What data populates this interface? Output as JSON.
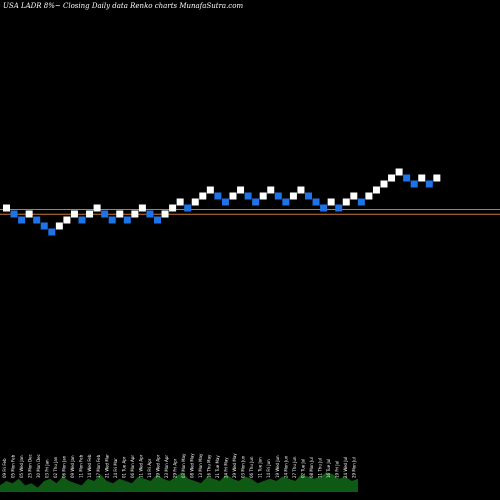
{
  "title": "USA LADR 8%~  Closing Daily data  Renko  charts MunafaSutra.com",
  "chart_data": {
    "type": "renko",
    "background": "#000000",
    "colors": {
      "up_brick": "#ffffff",
      "down_brick": "#1e73e8",
      "reference_line": "#c8783c",
      "volume": "#0e5a14"
    },
    "bricks": [
      {
        "level": 0,
        "dir": "up"
      },
      {
        "level": -1,
        "dir": "down"
      },
      {
        "level": -2,
        "dir": "down"
      },
      {
        "level": -1,
        "dir": "up"
      },
      {
        "level": -2,
        "dir": "down"
      },
      {
        "level": -3,
        "dir": "down"
      },
      {
        "level": -4,
        "dir": "down"
      },
      {
        "level": -3,
        "dir": "up"
      },
      {
        "level": -2,
        "dir": "up"
      },
      {
        "level": -1,
        "dir": "up"
      },
      {
        "level": -2,
        "dir": "down"
      },
      {
        "level": -1,
        "dir": "up"
      },
      {
        "level": 0,
        "dir": "up"
      },
      {
        "level": -1,
        "dir": "down"
      },
      {
        "level": -2,
        "dir": "down"
      },
      {
        "level": -1,
        "dir": "up"
      },
      {
        "level": -2,
        "dir": "down"
      },
      {
        "level": -1,
        "dir": "up"
      },
      {
        "level": 0,
        "dir": "up"
      },
      {
        "level": -1,
        "dir": "down"
      },
      {
        "level": -2,
        "dir": "down"
      },
      {
        "level": -1,
        "dir": "up"
      },
      {
        "level": 0,
        "dir": "up"
      },
      {
        "level": 1,
        "dir": "up"
      },
      {
        "level": 0,
        "dir": "down"
      },
      {
        "level": 1,
        "dir": "up"
      },
      {
        "level": 2,
        "dir": "up"
      },
      {
        "level": 3,
        "dir": "up"
      },
      {
        "level": 2,
        "dir": "down"
      },
      {
        "level": 1,
        "dir": "down"
      },
      {
        "level": 2,
        "dir": "up"
      },
      {
        "level": 3,
        "dir": "up"
      },
      {
        "level": 2,
        "dir": "down"
      },
      {
        "level": 1,
        "dir": "down"
      },
      {
        "level": 2,
        "dir": "up"
      },
      {
        "level": 3,
        "dir": "up"
      },
      {
        "level": 2,
        "dir": "down"
      },
      {
        "level": 1,
        "dir": "down"
      },
      {
        "level": 2,
        "dir": "up"
      },
      {
        "level": 3,
        "dir": "up"
      },
      {
        "level": 2,
        "dir": "down"
      },
      {
        "level": 1,
        "dir": "down"
      },
      {
        "level": 0,
        "dir": "down"
      },
      {
        "level": 1,
        "dir": "up"
      },
      {
        "level": 0,
        "dir": "down"
      },
      {
        "level": 1,
        "dir": "up"
      },
      {
        "level": 2,
        "dir": "up"
      },
      {
        "level": 1,
        "dir": "down"
      },
      {
        "level": 2,
        "dir": "up"
      },
      {
        "level": 3,
        "dir": "up"
      },
      {
        "level": 4,
        "dir": "up"
      },
      {
        "level": 5,
        "dir": "up"
      },
      {
        "level": 6,
        "dir": "up"
      },
      {
        "level": 5,
        "dir": "down"
      },
      {
        "level": 4,
        "dir": "down"
      },
      {
        "level": 5,
        "dir": "up"
      },
      {
        "level": 4,
        "dir": "down"
      },
      {
        "level": 5,
        "dir": "up"
      }
    ],
    "reference_lines": [
      -0.25,
      -1.05
    ],
    "volume": [
      3,
      5,
      4,
      6,
      3,
      4,
      2,
      5,
      6,
      4,
      7,
      5,
      4,
      3,
      6,
      5,
      8,
      5,
      4,
      6,
      5,
      4,
      7,
      6,
      5,
      8,
      6,
      5,
      7,
      9,
      6,
      5,
      4,
      7,
      6,
      5,
      8,
      6,
      5,
      7,
      6,
      4,
      5,
      6,
      5,
      7,
      6,
      5,
      8,
      7,
      6,
      7,
      9,
      8,
      6,
      7,
      5,
      6
    ],
    "date_labels": [
      "09 Fri Feb",
      "05 Mon Feb",
      "05 Wed Jan",
      "25 Mon Dec",
      "30 Mon Dec",
      "03 Fri Jan",
      "02 Thu Jan",
      "06 Mon Jan",
      "09 Wed Jan",
      "11 Mon Feb",
      "14 Wed Feb",
      "17 Mon Feb",
      "21 Wed Mar",
      "24 Fri Mar",
      "01 Tue Apr",
      "06 Mon Apr",
      "11 Wed Apr",
      "14 Fri Apr",
      "19 Wed Apr",
      "23 Mon Apr",
      "29 Fri Apr",
      "03 Mon May",
      "08 Wed May",
      "13 Mon May",
      "16 Thu May",
      "21 Tue May",
      "24 Fri May",
      "29 Wed May",
      "03 Mon Jun",
      "06 Thu Jun",
      "11 Tue Jun",
      "14 Fri Jun",
      "19 Wed Jun",
      "24 Mon Jun",
      "27 Thu Jun",
      "02 Tue Jul",
      "08 Mon Jul",
      "11 Thu Jul",
      "16 Tue Jul",
      "19 Fri Jul",
      "24 Wed Jul",
      "29 Mon Jul"
    ]
  }
}
